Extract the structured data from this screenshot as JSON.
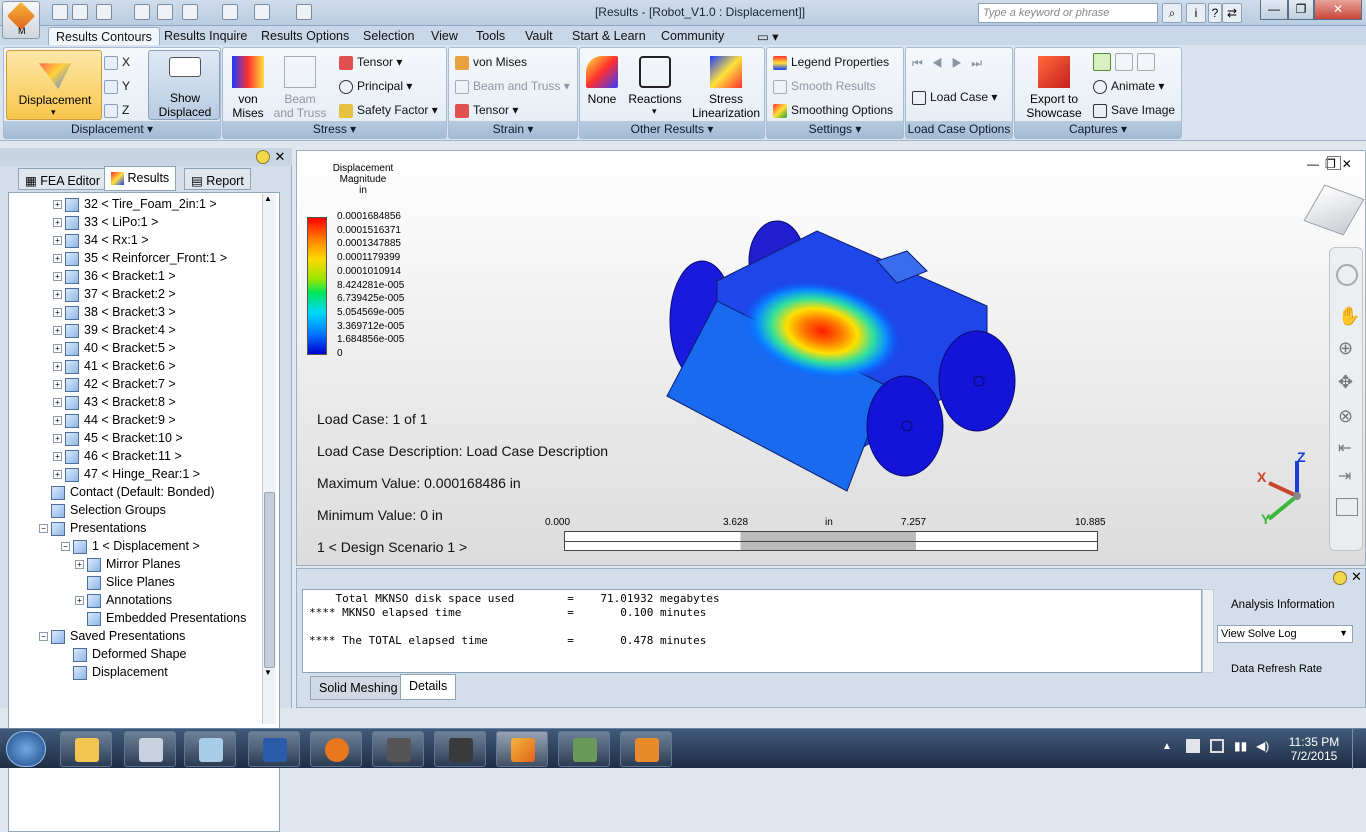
{
  "title_bar": {
    "app_letter": "M",
    "window_title": "[Results - [Robot_V1.0 : Displacement]]",
    "search_placeholder": "Type a keyword or phrase"
  },
  "ribbon_tabs": [
    "Results Contours",
    "Results Inquire",
    "Results Options",
    "Selection",
    "View",
    "Tools",
    "Vault",
    "Start & Learn",
    "Community"
  ],
  "ribbon": {
    "displacement": {
      "big": "Displacement",
      "x": "X",
      "y": "Y",
      "z": "Z",
      "show1": "Show",
      "show2": "Displaced",
      "label": "Displacement"
    },
    "stress": {
      "vm1": "von",
      "vm2": "Mises",
      "bt1": "Beam",
      "bt2": "and Truss",
      "tensor": "Tensor",
      "principal": "Principal",
      "safety": "Safety Factor",
      "label": "Stress"
    },
    "strain": {
      "vm": "von Mises",
      "bt": "Beam and Truss",
      "tensor": "Tensor",
      "label": "Strain"
    },
    "other": {
      "none": "None",
      "reactions": "Reactions",
      "sl1": "Stress",
      "sl2": "Linearization",
      "label": "Other Results"
    },
    "settings": {
      "legend": "Legend Properties",
      "smooth": "Smooth Results",
      "smoothing": "Smoothing Options",
      "label": "Settings"
    },
    "loadcase": {
      "lc": "Load Case",
      "label": "Load Case Options"
    },
    "captures": {
      "exp1": "Export to",
      "exp2": "Showcase",
      "animate": "Animate",
      "save": "Save Image",
      "label": "Captures"
    }
  },
  "left_panel": {
    "tabs": [
      "FEA Editor",
      "Results",
      "Report"
    ],
    "tree": [
      {
        "t": "32 < Tire_Foam_2in:1 >",
        "l": 1,
        "e": "+"
      },
      {
        "t": "33 < LiPo:1 >",
        "l": 1,
        "e": "+"
      },
      {
        "t": "34 < Rx:1 >",
        "l": 1,
        "e": "+"
      },
      {
        "t": "35 < Reinforcer_Front:1 >",
        "l": 1,
        "e": "+"
      },
      {
        "t": "36 < Bracket:1 >",
        "l": 1,
        "e": "+"
      },
      {
        "t": "37 < Bracket:2 >",
        "l": 1,
        "e": "+"
      },
      {
        "t": "38 < Bracket:3 >",
        "l": 1,
        "e": "+"
      },
      {
        "t": "39 < Bracket:4 >",
        "l": 1,
        "e": "+"
      },
      {
        "t": "40 < Bracket:5 >",
        "l": 1,
        "e": "+"
      },
      {
        "t": "41 < Bracket:6 >",
        "l": 1,
        "e": "+"
      },
      {
        "t": "42 < Bracket:7 >",
        "l": 1,
        "e": "+"
      },
      {
        "t": "43 < Bracket:8 >",
        "l": 1,
        "e": "+"
      },
      {
        "t": "44 < Bracket:9 >",
        "l": 1,
        "e": "+"
      },
      {
        "t": "45 < Bracket:10 >",
        "l": 1,
        "e": "+"
      },
      {
        "t": "46 < Bracket:11 >",
        "l": 1,
        "e": "+"
      },
      {
        "t": "47 < Hinge_Rear:1 >",
        "l": 1,
        "e": "+"
      },
      {
        "t": "Contact (Default: Bonded)",
        "l": 0,
        "e": ""
      },
      {
        "t": "Selection Groups",
        "l": 0,
        "e": ""
      },
      {
        "t": "Presentations",
        "l": 0,
        "e": "-"
      },
      {
        "t": "1 < Displacement >",
        "l": 1,
        "e": "-"
      },
      {
        "t": "Mirror Planes",
        "l": 2,
        "e": "+"
      },
      {
        "t": "Slice Planes",
        "l": 2,
        "e": ""
      },
      {
        "t": "Annotations",
        "l": 2,
        "e": "+"
      },
      {
        "t": "Embedded Presentations",
        "l": 2,
        "e": ""
      },
      {
        "t": "Saved Presentations",
        "l": 0,
        "e": "-"
      },
      {
        "t": "Deformed Shape",
        "l": 1,
        "e": ""
      },
      {
        "t": "Displacement",
        "l": 1,
        "e": ""
      }
    ]
  },
  "viewport": {
    "legend_title1": "Displacement",
    "legend_title2": "Magnitude",
    "legend_unit": "in",
    "legend_values": [
      "0.0001684856",
      "0.0001516371",
      "0.0001347885",
      "0.0001179399",
      "0.0001010914",
      "8.424281e-005",
      "6.739425e-005",
      "5.054569e-005",
      "3.369712e-005",
      "1.684856e-005",
      "0"
    ],
    "load_case": "Load Case:   1 of 1",
    "load_case_desc": "Load Case Description:  Load Case Description",
    "max_value": "Maximum Value: 0.000168486 in",
    "min_value": "Minimum Value: 0 in",
    "scenario": "1 < Design Scenario 1 >",
    "scale": {
      "v0": "0.000",
      "v1": "3.628",
      "unit": "in",
      "v2": "7.257",
      "v3": "10.885"
    },
    "axes": {
      "x": "X",
      "y": "Y",
      "z": "Z"
    }
  },
  "output": {
    "lines": [
      "    Total MKNSO disk space used        =    71.01932 megabytes",
      "**** MKNSO elapsed time                =       0.100 minutes",
      "",
      "**** The TOTAL elapsed time            =       0.478 minutes"
    ],
    "analysis_info": "Analysis Information",
    "view_solve_log": "View Solve Log",
    "data_refresh": "Data Refresh Rate",
    "tabs": [
      "Solid Meshing",
      "Details"
    ]
  },
  "taskbar": {
    "time": "11:35 PM",
    "date": "7/2/2015"
  }
}
